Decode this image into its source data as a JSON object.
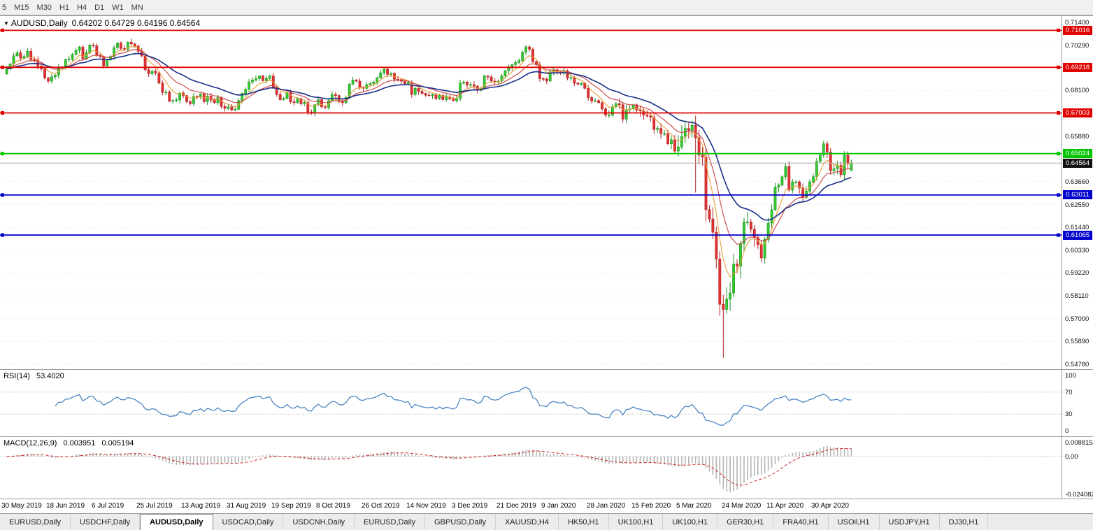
{
  "toolbar": {
    "timeframes": [
      "5",
      "M15",
      "M30",
      "H1",
      "H4",
      "D1",
      "W1",
      "MN"
    ]
  },
  "chart_header": {
    "dropdown_icon": "▼",
    "symbol": "AUDUSD,Daily",
    "ohlc": "0.64202 0.64729 0.64196 0.64564"
  },
  "chart_data": {
    "type": "candlestick",
    "symbol": "AUDUSD",
    "timeframe": "Daily",
    "current_ohlc": {
      "open": 0.64202,
      "high": 0.64729,
      "low": 0.64196,
      "close": 0.64564
    },
    "price_axis": {
      "ticks": [
        "0.71400",
        "0.70290",
        "0.68100",
        "0.65880",
        "0.63660",
        "0.62550",
        "0.61440",
        "0.60330",
        "0.59220",
        "0.58110",
        "0.57000",
        "0.55890",
        "0.54780"
      ],
      "view_max": 0.7171,
      "view_min": 0.5458
    },
    "levels": [
      {
        "price": 0.71016,
        "label": "0.71016",
        "color": "#e00000"
      },
      {
        "price": 0.69218,
        "label": "0.69218",
        "color": "#e00000"
      },
      {
        "price": 0.67003,
        "label": "0.67003",
        "color": "#e00000"
      },
      {
        "price": 0.65024,
        "label": "0.65024",
        "color": "#00c400"
      },
      {
        "price": 0.63011,
        "label": "0.63011",
        "color": "#0000cc"
      },
      {
        "price": 0.61065,
        "label": "0.61065",
        "color": "#0000cc"
      }
    ],
    "current_price": {
      "value": 0.64564,
      "label": "0.64564",
      "badge_color": "#111111",
      "line_color": "#aaaaaa"
    },
    "dates": [
      {
        "i": 0,
        "label": "30 May 2019"
      },
      {
        "i": 13,
        "label": "18 Jun 2019"
      },
      {
        "i": 26,
        "label": "6 Jul 2019"
      },
      {
        "i": 39,
        "label": "25 Jul 2019"
      },
      {
        "i": 52,
        "label": "13 Aug 2019"
      },
      {
        "i": 65,
        "label": "31 Aug 2019"
      },
      {
        "i": 78,
        "label": "19 Sep 2019"
      },
      {
        "i": 91,
        "label": "8 Oct 2019"
      },
      {
        "i": 104,
        "label": "26 Oct 2019"
      },
      {
        "i": 117,
        "label": "14 Nov 2019"
      },
      {
        "i": 130,
        "label": "3 Dec 2019"
      },
      {
        "i": 143,
        "label": "21 Dec 2019"
      },
      {
        "i": 156,
        "label": "9 Jan 2020"
      },
      {
        "i": 169,
        "label": "28 Jan 2020"
      },
      {
        "i": 182,
        "label": "15 Feb 2020"
      },
      {
        "i": 195,
        "label": "5 Mar 2020"
      },
      {
        "i": 208,
        "label": "24 Mar 2020"
      },
      {
        "i": 221,
        "label": "11 Apr 2020"
      },
      {
        "i": 234,
        "label": "30 Apr 2020"
      }
    ],
    "candles": {
      "up_color": "#33cc33",
      "up_stroke": "#1f8f1f",
      "down_color": "#e03232",
      "down_stroke": "#b31f1f",
      "first_open": 0.689,
      "closes": [
        0.6915,
        0.6938,
        0.6978,
        0.6993,
        0.6966,
        0.6975,
        0.7,
        0.696,
        0.6959,
        0.6928,
        0.6914,
        0.687,
        0.6855,
        0.6876,
        0.6884,
        0.6923,
        0.6924,
        0.696,
        0.6962,
        0.6985,
        0.7004,
        0.7021,
        0.6964,
        0.6993,
        0.703,
        0.7027,
        0.6981,
        0.6975,
        0.6929,
        0.6959,
        0.6975,
        0.7018,
        0.704,
        0.7013,
        0.701,
        0.7044,
        0.7036,
        0.7025,
        0.7,
        0.6977,
        0.691,
        0.6891,
        0.6903,
        0.6895,
        0.6845,
        0.68,
        0.6801,
        0.6757,
        0.676,
        0.6763,
        0.6797,
        0.6785,
        0.6755,
        0.6745,
        0.678,
        0.6777,
        0.6792,
        0.6755,
        0.6782,
        0.6763,
        0.675,
        0.6775,
        0.6732,
        0.6722,
        0.673,
        0.6715,
        0.6718,
        0.676,
        0.6795,
        0.6815,
        0.685,
        0.686,
        0.6867,
        0.688,
        0.6857,
        0.6868,
        0.688,
        0.6822,
        0.679,
        0.6765,
        0.677,
        0.6798,
        0.6755,
        0.675,
        0.677,
        0.6745,
        0.6751,
        0.6705,
        0.67,
        0.674,
        0.6765,
        0.673,
        0.6727,
        0.676,
        0.679,
        0.6785,
        0.6755,
        0.675,
        0.6775,
        0.684,
        0.686,
        0.6855,
        0.6825,
        0.682,
        0.6838,
        0.6843,
        0.685,
        0.687,
        0.6895,
        0.6913,
        0.6888,
        0.6893,
        0.6864,
        0.6862,
        0.6855,
        0.6843,
        0.6848,
        0.679,
        0.682,
        0.6805,
        0.6795,
        0.6787,
        0.6785,
        0.679,
        0.677,
        0.6785,
        0.6765,
        0.6777,
        0.6768,
        0.676,
        0.677,
        0.6845,
        0.685,
        0.6835,
        0.6838,
        0.683,
        0.681,
        0.682,
        0.688,
        0.6875,
        0.6855,
        0.685,
        0.6855,
        0.688,
        0.6905,
        0.692,
        0.6935,
        0.6945,
        0.6955,
        0.6995,
        0.7021,
        0.701,
        0.695,
        0.6935,
        0.6867,
        0.6865,
        0.6855,
        0.69,
        0.691,
        0.69,
        0.6895,
        0.6905,
        0.687,
        0.6872,
        0.6845,
        0.684,
        0.6845,
        0.682,
        0.6775,
        0.6758,
        0.676,
        0.675,
        0.672,
        0.669,
        0.669,
        0.673,
        0.6745,
        0.674,
        0.667,
        0.6715,
        0.672,
        0.674,
        0.6715,
        0.671,
        0.669,
        0.6685,
        0.668,
        0.662,
        0.6625,
        0.66,
        0.66,
        0.655,
        0.657,
        0.6515,
        0.6535,
        0.6585,
        0.6625,
        0.6615,
        0.664,
        0.658,
        0.6495,
        0.6485,
        0.623,
        0.6185,
        0.612,
        0.599,
        0.577,
        0.5745,
        0.5795,
        0.5825,
        0.5965,
        0.5955,
        0.6065,
        0.617,
        0.617,
        0.6135,
        0.6095,
        0.606,
        0.5995,
        0.6085,
        0.6165,
        0.623,
        0.634,
        0.635,
        0.639,
        0.644,
        0.6325,
        0.6365,
        0.6365,
        0.6335,
        0.629,
        0.632,
        0.6365,
        0.639,
        0.6465,
        0.6495,
        0.655,
        0.651,
        0.642,
        0.643,
        0.6445,
        0.64,
        0.6495,
        0.6455,
        0.64564
      ],
      "overrides": {
        "199": {
          "low": 0.6313
        },
        "207": {
          "low": 0.551
        },
        "244": {
          "open": 0.64202,
          "high": 0.64729,
          "low": 0.64196,
          "close": 0.64564
        }
      }
    },
    "moving_averages": [
      {
        "name": "ma-fast",
        "period": 6,
        "color": "#e8a03a",
        "width": 1.1
      },
      {
        "name": "ma-mid",
        "period": 13,
        "color": "#c94343",
        "width": 1.1
      },
      {
        "name": "ma-slow",
        "period": 26,
        "color": "#1b2f8a",
        "width": 1.6
      }
    ],
    "rsi": {
      "label": "RSI(14)",
      "value_text": "53.4020",
      "period": 14,
      "color": "#3f7cbf",
      "axis_ticks": [
        "100",
        "70",
        "30",
        "0"
      ],
      "guide_levels": [
        70,
        30
      ]
    },
    "macd": {
      "label": "MACD(12,26,9)",
      "value_main": "0.003951",
      "value_signal": "0.005194",
      "fast": 12,
      "slow": 26,
      "signal": 9,
      "axis_max": "0.008815",
      "axis_zero": "0.00",
      "axis_min": "-0.024082",
      "view_max": 0.0098,
      "view_min": -0.0252,
      "hist_color": "#b4b4b4",
      "signal_color": "#d02020"
    }
  },
  "bottom_tabs": {
    "active_index": 2,
    "items": [
      "EURUSD,Daily",
      "USDCHF,Daily",
      "AUDUSD,Daily",
      "USDCAD,Daily",
      "USDCNH,Daily",
      "EURUSD,Daily",
      "GBPUSD,Daily",
      "XAUUSD,H4",
      "HK50,H1",
      "UK100,H1",
      "UK100,H1",
      "GER30,H1",
      "FRA40,H1",
      "USOil,H1",
      "USDJPY,H1",
      "DJ30,H1"
    ]
  }
}
